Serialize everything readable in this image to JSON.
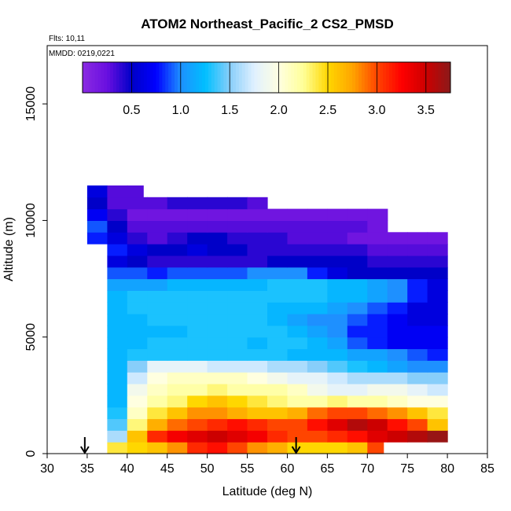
{
  "chart_data": {
    "type": "heatmap",
    "title": "ATOM2 Northeast_Pacific_2 CS2_PMSD",
    "flights_label": "Flts: 10,11",
    "mmdd_label": "MMDD: 0219,0221",
    "xlabel": "Latitude (deg N)",
    "ylabel": "Altitude (m)",
    "xlim": [
      30,
      85
    ],
    "ylim": [
      0,
      17500
    ],
    "x_ticks": [
      30,
      35,
      40,
      45,
      50,
      55,
      60,
      65,
      70,
      75,
      80,
      85
    ],
    "y_ticks": [
      0,
      5000,
      10000,
      15000
    ],
    "colorbar": {
      "range": [
        0,
        3.75
      ],
      "ticks": [
        0.5,
        1.0,
        1.5,
        2.0,
        2.5,
        3.0,
        3.5
      ],
      "tick_labels": [
        "0.5",
        "1.0",
        "1.5",
        "2.0",
        "2.5",
        "3.0",
        "3.5"
      ],
      "colors": [
        "#8a2be2",
        "#6a0fe0",
        "#0000c8",
        "#0000ff",
        "#1e90ff",
        "#00bfff",
        "#87cefa",
        "#e0f0ff",
        "#ffffe0",
        "#ffff99",
        "#ffd700",
        "#ffa500",
        "#ff4500",
        "#ff0000",
        "#cc0000",
        "#8b1a1a"
      ]
    },
    "arrows_latitude": [
      34.7,
      61.1
    ],
    "grid": {
      "lat_start": 35,
      "lat_step": 2.5,
      "lat_cells": 18,
      "alt_step": 500,
      "rows": [
        {
          "alt": 500,
          "lat_max": 72,
          "values": [
            null,
            2.4,
            2.5,
            2.6,
            2.8,
            3.1,
            3.2,
            3.0,
            2.8,
            2.7,
            2.5,
            2.5,
            2.5,
            2.6,
            3.0,
            null,
            null,
            null
          ]
        },
        {
          "alt": 1000,
          "lat_max": 80,
          "values": [
            null,
            1.6,
            2.6,
            3.1,
            3.3,
            3.4,
            3.5,
            3.4,
            3.3,
            3.1,
            3.0,
            3.0,
            3.1,
            3.2,
            3.4,
            3.5,
            3.6,
            3.7
          ]
        },
        {
          "alt": 1500,
          "lat_max": 80,
          "values": [
            null,
            1.4,
            2.3,
            2.7,
            2.9,
            3.0,
            3.1,
            3.2,
            3.1,
            3.0,
            3.0,
            3.2,
            3.4,
            3.6,
            3.5,
            3.2,
            3.0,
            2.6
          ]
        },
        {
          "alt": 2000,
          "lat_max": 80,
          "values": [
            null,
            1.3,
            2.1,
            2.4,
            2.6,
            2.8,
            2.8,
            2.7,
            2.6,
            2.6,
            2.7,
            2.9,
            3.0,
            3.0,
            2.9,
            2.8,
            2.6,
            2.4
          ]
        },
        {
          "alt": 2500,
          "lat_max": 80,
          "values": [
            null,
            1.2,
            2.0,
            2.2,
            2.3,
            2.5,
            2.6,
            2.5,
            2.4,
            2.3,
            2.2,
            2.2,
            2.3,
            2.2,
            2.2,
            2.1,
            2.0,
            2.0
          ]
        },
        {
          "alt": 3000,
          "lat_max": 80,
          "values": [
            null,
            1.2,
            1.9,
            2.1,
            2.2,
            2.2,
            2.3,
            2.2,
            2.2,
            2.2,
            2.1,
            1.9,
            1.8,
            1.8,
            1.9,
            1.9,
            1.8,
            1.7
          ]
        },
        {
          "alt": 3500,
          "lat_max": 80,
          "values": [
            null,
            1.2,
            1.7,
            2.0,
            2.1,
            2.1,
            2.1,
            2.1,
            2.0,
            1.9,
            1.8,
            1.8,
            1.7,
            1.6,
            1.6,
            1.6,
            1.5,
            1.5
          ]
        },
        {
          "alt": 4000,
          "lat_max": 80,
          "values": [
            null,
            1.2,
            1.5,
            1.8,
            1.8,
            1.8,
            1.7,
            1.7,
            1.7,
            1.6,
            1.6,
            1.5,
            1.4,
            1.3,
            1.2,
            1.1,
            1.0,
            1.0
          ]
        },
        {
          "alt": 4500,
          "lat_max": 80,
          "values": [
            null,
            1.2,
            1.3,
            1.3,
            1.3,
            1.3,
            1.3,
            1.3,
            1.3,
            1.3,
            1.2,
            1.2,
            1.2,
            1.1,
            1.1,
            1.0,
            0.9,
            0.8
          ]
        },
        {
          "alt": 5000,
          "lat_max": 80,
          "values": [
            null,
            1.2,
            1.2,
            1.3,
            1.3,
            1.3,
            1.3,
            1.3,
            1.2,
            1.3,
            1.3,
            1.2,
            1.1,
            0.9,
            0.8,
            0.7,
            0.7,
            0.7
          ]
        },
        {
          "alt": 5500,
          "lat_max": 80,
          "values": [
            null,
            1.2,
            1.2,
            1.2,
            1.2,
            1.3,
            1.3,
            1.3,
            1.3,
            1.3,
            1.2,
            1.1,
            1.0,
            0.8,
            0.8,
            0.7,
            0.7,
            0.7
          ]
        },
        {
          "alt": 6000,
          "lat_max": 80,
          "values": [
            null,
            1.2,
            1.2,
            1.3,
            1.3,
            1.3,
            1.3,
            1.3,
            1.3,
            1.2,
            1.1,
            1.0,
            1.0,
            0.9,
            0.8,
            0.7,
            0.6,
            0.6
          ]
        },
        {
          "alt": 6500,
          "lat_max": 80,
          "values": [
            null,
            1.2,
            1.3,
            1.3,
            1.3,
            1.3,
            1.3,
            1.3,
            1.3,
            1.2,
            1.2,
            1.2,
            1.1,
            1.0,
            0.9,
            0.8,
            0.6,
            0.6
          ]
        },
        {
          "alt": 7000,
          "lat_max": 80,
          "values": [
            null,
            1.2,
            1.3,
            1.3,
            1.3,
            1.3,
            1.3,
            1.3,
            1.3,
            1.3,
            1.3,
            1.3,
            1.2,
            1.2,
            1.1,
            1.0,
            0.8,
            0.6
          ]
        },
        {
          "alt": 7500,
          "lat_max": 80,
          "values": [
            null,
            1.1,
            1.1,
            1.1,
            1.2,
            1.2,
            1.2,
            1.2,
            1.2,
            1.3,
            1.3,
            1.3,
            1.2,
            1.2,
            1.1,
            1.0,
            0.8,
            0.6
          ]
        },
        {
          "alt": 8000,
          "lat_max": 80,
          "values": [
            null,
            0.9,
            0.9,
            0.8,
            0.9,
            0.9,
            0.9,
            0.9,
            1.0,
            1.0,
            1.0,
            0.8,
            0.6,
            0.5,
            0.5,
            0.5,
            0.5,
            0.5
          ]
        },
        {
          "alt": 8500,
          "lat_max": 80,
          "values": [
            null,
            0.6,
            0.5,
            0.4,
            0.4,
            0.4,
            0.4,
            0.4,
            0.4,
            0.5,
            0.5,
            0.5,
            0.5,
            0.5,
            0.4,
            0.4,
            0.4,
            0.4
          ]
        },
        {
          "alt": 9000,
          "lat_max": 80,
          "values": [
            null,
            0.8,
            0.6,
            0.5,
            0.5,
            0.6,
            0.5,
            0.5,
            0.4,
            0.4,
            0.4,
            0.4,
            0.4,
            0.4,
            0.3,
            0.3,
            0.3,
            0.3
          ]
        },
        {
          "alt": 9500,
          "lat_max": 80,
          "values": [
            0.8,
            0.6,
            0.4,
            0.3,
            0.4,
            0.5,
            0.5,
            0.4,
            0.4,
            0.4,
            0.3,
            0.3,
            0.3,
            0.2,
            0.2,
            0.2,
            0.2,
            0.2
          ]
        },
        {
          "alt": 10000,
          "lat_max": 74,
          "values": [
            0.9,
            0.5,
            0.3,
            0.3,
            0.3,
            0.3,
            0.3,
            0.3,
            0.3,
            0.3,
            0.3,
            0.3,
            0.3,
            0.3,
            0.2,
            null,
            null,
            null
          ]
        },
        {
          "alt": 10500,
          "lat_max": 74,
          "values": [
            0.7,
            0.4,
            0.2,
            0.2,
            0.2,
            0.2,
            0.2,
            0.2,
            0.2,
            0.2,
            0.2,
            0.2,
            0.2,
            0.2,
            0.2,
            null,
            null,
            null
          ]
        },
        {
          "alt": 11000,
          "lat_max": 59,
          "values": [
            0.5,
            0.3,
            0.3,
            0.3,
            0.4,
            0.4,
            0.4,
            0.4,
            0.3,
            null,
            null,
            null,
            null,
            null,
            null,
            null,
            null,
            null
          ]
        },
        {
          "alt": 11500,
          "lat_max": 42,
          "values": [
            0.6,
            0.3,
            0.3,
            null,
            null,
            null,
            null,
            null,
            null,
            null,
            null,
            null,
            null,
            null,
            null,
            null,
            null,
            null
          ]
        }
      ]
    }
  }
}
